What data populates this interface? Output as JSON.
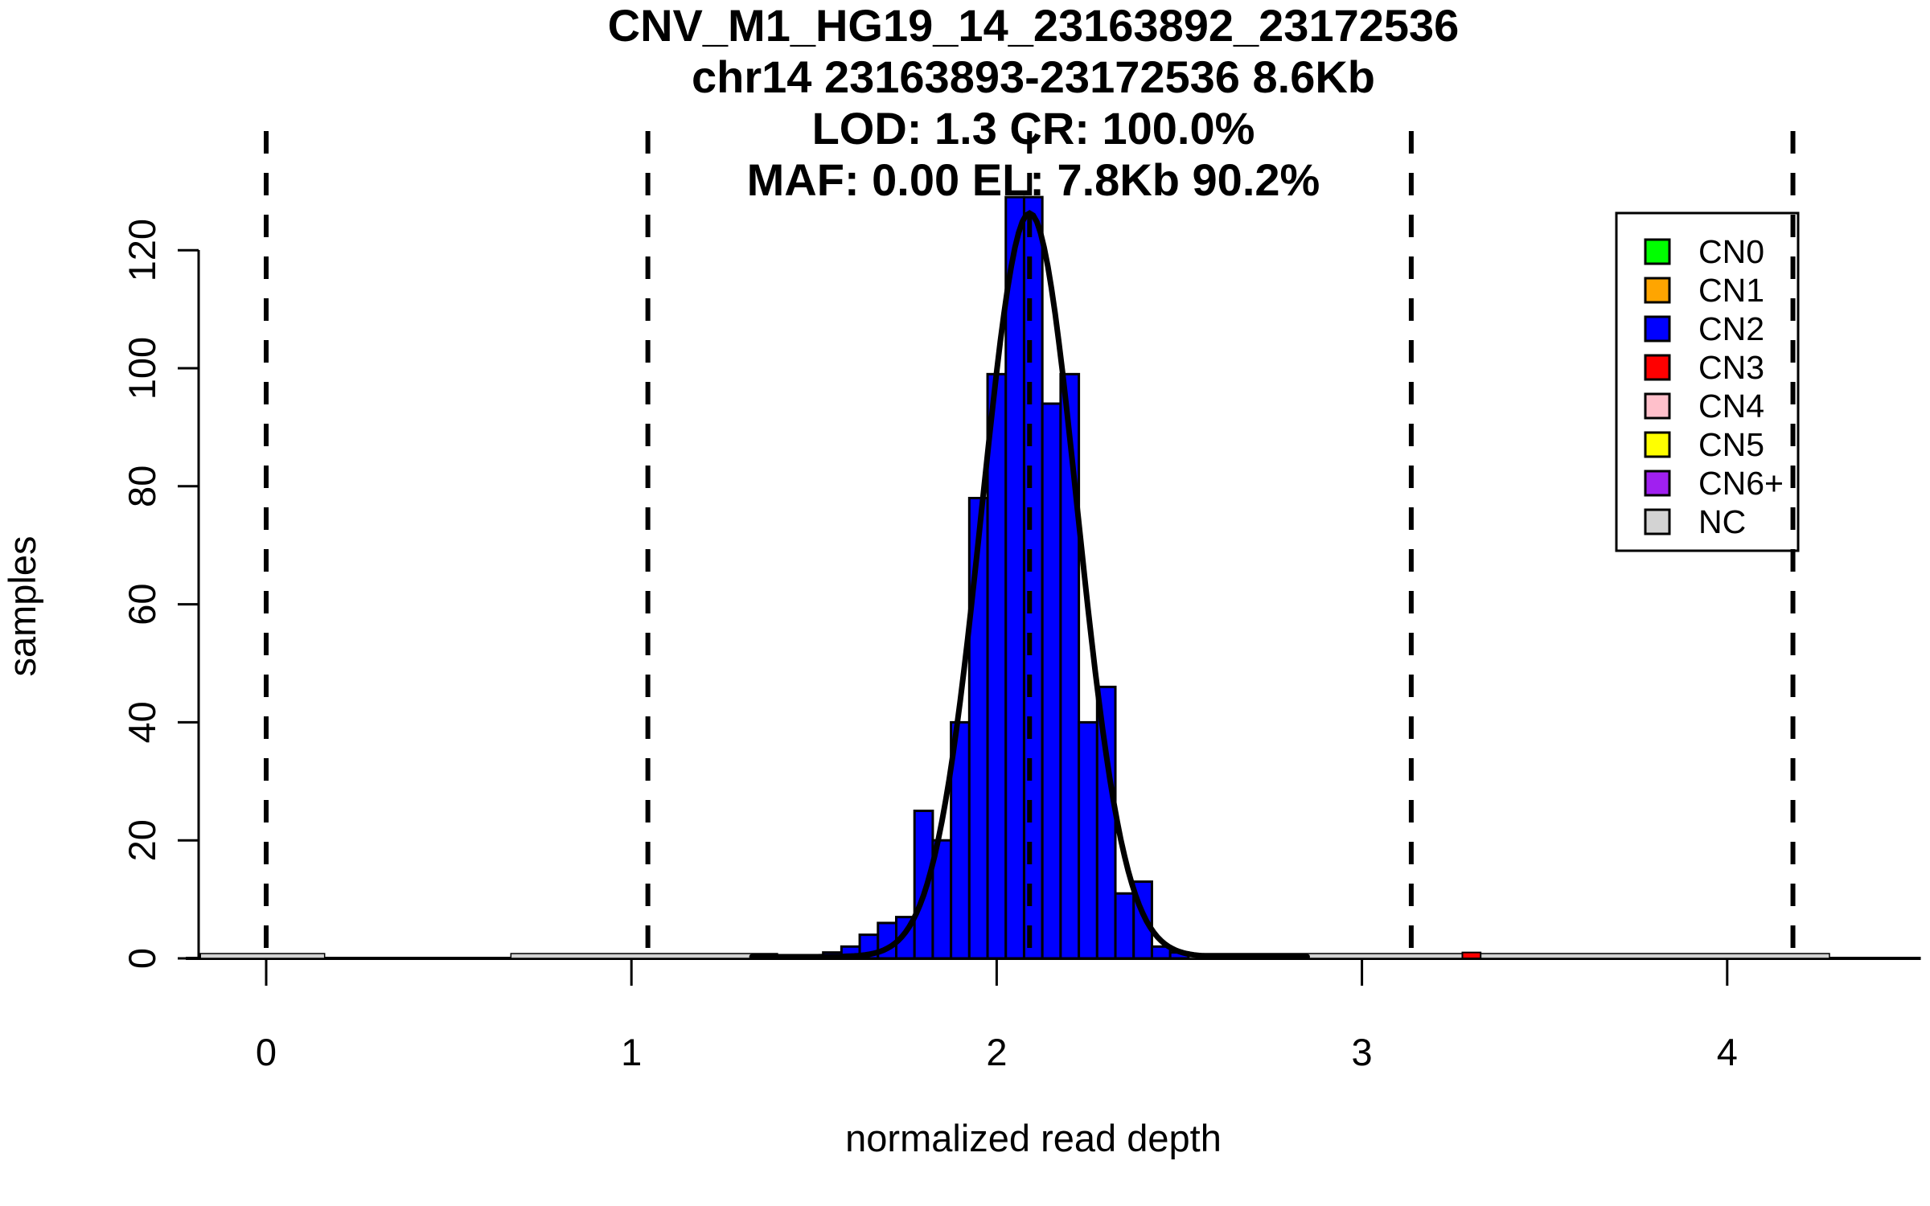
{
  "chart_data": {
    "type": "bar",
    "title_lines": [
      "CNV_M1_HG19_14_23163892_23172536",
      "chr14 23163893-23172536 8.6Kb",
      "LOD: 1.3 CR: 100.0%",
      "MAF: 0.00 EL: 7.8Kb 90.2%"
    ],
    "xlabel": "normalized read depth",
    "ylabel": "samples",
    "x_ticks": [
      0,
      1,
      2,
      3,
      4
    ],
    "y_ticks": [
      0,
      20,
      40,
      60,
      80,
      100,
      120
    ],
    "xlim": [
      -0.22,
      4.53
    ],
    "ylim": [
      0,
      129
    ],
    "grid": false,
    "histogram": {
      "series_name": "CN2",
      "bin_start": 1.525,
      "bin_width": 0.05,
      "counts": [
        1,
        2,
        4,
        6,
        7,
        25,
        20,
        40,
        78,
        99,
        129,
        129,
        94,
        99,
        40,
        46,
        11,
        13,
        2,
        1
      ],
      "fill_color": "#0000FF",
      "border_color": "#000000"
    },
    "outlier_bar": {
      "series_name": "CN3",
      "x": 3.275,
      "width": 0.05,
      "count": 1,
      "fill_color": "#FF0000",
      "border_color": "#000000"
    },
    "nc_baseline_segments": [
      {
        "from": -0.18,
        "to": 0.16
      },
      {
        "from": 0.67,
        "to": 1.4
      },
      {
        "from": 2.38,
        "to": 4.28
      }
    ],
    "nc_color": "#D3D3D3",
    "fit_curve": {
      "mu": 2.09,
      "sigma": 0.13,
      "amplitude": 126,
      "color": "#000000",
      "stroke_width": 7
    },
    "dashed_lines_x": [
      0,
      1.045,
      2.09,
      3.135,
      4.18
    ],
    "dashed_line_color": "#000000",
    "legend": {
      "position": "top-right",
      "items": [
        {
          "label": "CN0",
          "color": "#00FF00"
        },
        {
          "label": "CN1",
          "color": "#FFA500"
        },
        {
          "label": "CN2",
          "color": "#0000FF"
        },
        {
          "label": "CN3",
          "color": "#FF0000"
        },
        {
          "label": "CN4",
          "color": "#FFC0CB"
        },
        {
          "label": "CN5",
          "color": "#FFFF00"
        },
        {
          "label": "CN6+",
          "color": "#A020F0"
        },
        {
          "label": "NC",
          "color": "#D3D3D3"
        }
      ]
    }
  }
}
